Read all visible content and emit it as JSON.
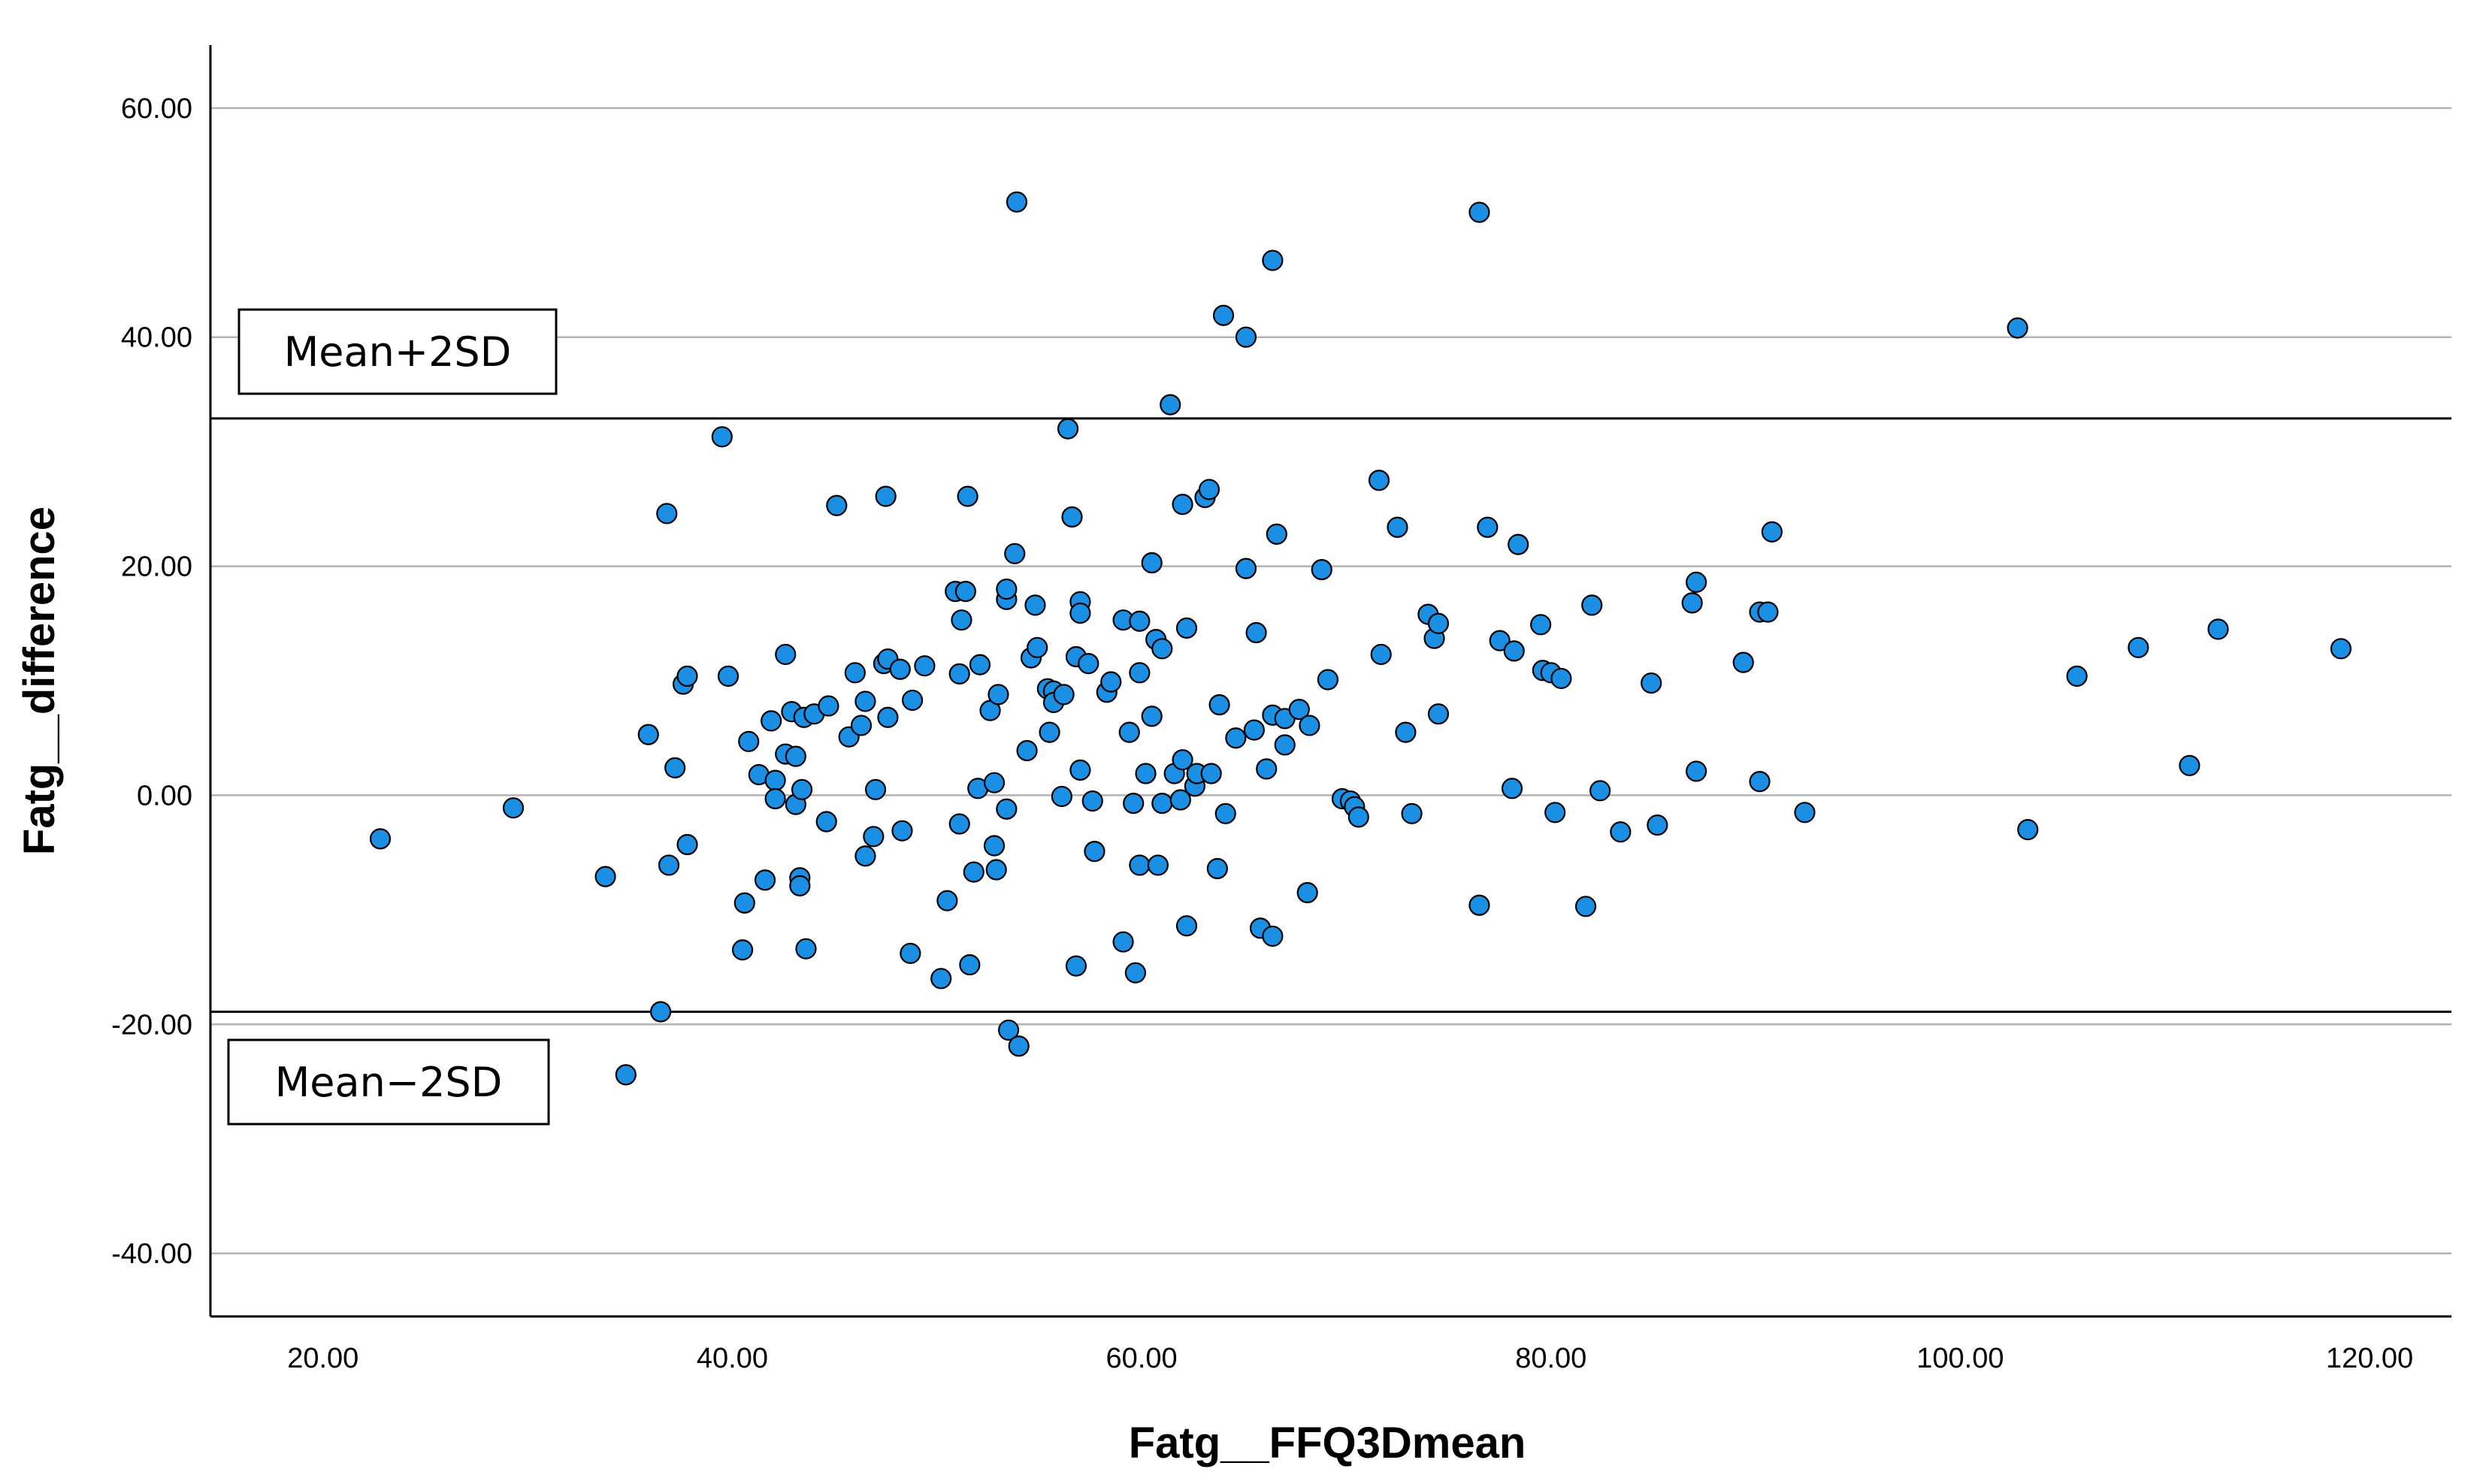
{
  "chart_data": {
    "type": "scatter",
    "xlabel": "Fatg__FFQ3Dmean",
    "ylabel": "Fatg__difference",
    "xlim": [
      14.5,
      124
    ],
    "ylim": [
      -45.5,
      65.5
    ],
    "x_ticks": [
      20,
      40,
      60,
      80,
      100,
      120
    ],
    "x_tick_labels": [
      "20.00",
      "40.00",
      "60.00",
      "80.00",
      "100.00",
      "120.00"
    ],
    "y_ticks": [
      -40,
      -20,
      0,
      20,
      40,
      60
    ],
    "y_tick_labels": [
      "-40.00",
      "-20.00",
      "0.00",
      "20.00",
      "40.00",
      "60.00"
    ],
    "grid": "horizontal",
    "point_color": "#1a8fe3",
    "reference_lines": [
      {
        "label": "Mean+2SD",
        "y": 32.9
      },
      {
        "label": "Mean−2SD",
        "y": -18.9
      }
    ],
    "points": [
      [
        22.8,
        -3.8
      ],
      [
        29.3,
        -1.1
      ],
      [
        33.8,
        -7.1
      ],
      [
        34.8,
        -24.4
      ],
      [
        35.9,
        5.3
      ],
      [
        36.5,
        -18.9
      ],
      [
        36.8,
        24.6
      ],
      [
        36.9,
        -6.1
      ],
      [
        37.2,
        2.4
      ],
      [
        37.6,
        9.7
      ],
      [
        37.8,
        10.4
      ],
      [
        37.8,
        -4.3
      ],
      [
        39.5,
        31.3
      ],
      [
        39.8,
        10.4
      ],
      [
        40.6,
        -9.4
      ],
      [
        40.5,
        -13.5
      ],
      [
        40.8,
        4.7
      ],
      [
        41.3,
        1.8
      ],
      [
        41.6,
        -7.4
      ],
      [
        41.9,
        6.5
      ],
      [
        42.1,
        1.3
      ],
      [
        42.1,
        -0.3
      ],
      [
        42.6,
        12.3
      ],
      [
        42.6,
        3.6
      ],
      [
        42.9,
        7.3
      ],
      [
        43.1,
        3.4
      ],
      [
        43.1,
        -0.8
      ],
      [
        43.3,
        -7.2
      ],
      [
        43.3,
        -7.9
      ],
      [
        43.4,
        0.5
      ],
      [
        43.5,
        6.8
      ],
      [
        43.6,
        -13.4
      ],
      [
        44,
        7.1
      ],
      [
        44.6,
        -2.3
      ],
      [
        44.7,
        7.8
      ],
      [
        45.1,
        25.3
      ],
      [
        45.7,
        5.1
      ],
      [
        46,
        10.7
      ],
      [
        46.3,
        6.1
      ],
      [
        46.5,
        -5.3
      ],
      [
        46.5,
        8.2
      ],
      [
        46.9,
        -3.6
      ],
      [
        47,
        0.5
      ],
      [
        47.4,
        11.5
      ],
      [
        47.5,
        26.1
      ],
      [
        47.6,
        6.8
      ],
      [
        47.6,
        11.9
      ],
      [
        48.2,
        11
      ],
      [
        48.3,
        -3.1
      ],
      [
        48.7,
        -13.8
      ],
      [
        48.8,
        8.3
      ],
      [
        49.4,
        11.3
      ],
      [
        50.2,
        -16
      ],
      [
        50.5,
        -9.2
      ],
      [
        50.9,
        17.8
      ],
      [
        51.1,
        10.6
      ],
      [
        51.1,
        -2.5
      ],
      [
        51.2,
        15.3
      ],
      [
        51.4,
        17.8
      ],
      [
        51.5,
        26.1
      ],
      [
        51.6,
        -14.8
      ],
      [
        51.8,
        -6.7
      ],
      [
        52,
        0.6
      ],
      [
        52.1,
        11.4
      ],
      [
        52.6,
        7.4
      ],
      [
        52.8,
        1.1
      ],
      [
        52.8,
        -4.4
      ],
      [
        52.9,
        -6.5
      ],
      [
        53,
        8.8
      ],
      [
        53.4,
        -1.2
      ],
      [
        53.4,
        17.1
      ],
      [
        53.4,
        18
      ],
      [
        53.5,
        -20.5
      ],
      [
        53.8,
        21.1
      ],
      [
        53.9,
        51.8
      ],
      [
        54,
        -21.9
      ],
      [
        54.4,
        3.9
      ],
      [
        54.6,
        12
      ],
      [
        54.8,
        16.6
      ],
      [
        54.9,
        12.9
      ],
      [
        55.4,
        9.3
      ],
      [
        55.5,
        5.5
      ],
      [
        55.7,
        9.1
      ],
      [
        55.7,
        8.1
      ],
      [
        56.1,
        -0.1
      ],
      [
        56.2,
        8.8
      ],
      [
        56.4,
        32
      ],
      [
        56.6,
        24.3
      ],
      [
        56.8,
        12.1
      ],
      [
        56.8,
        -14.9
      ],
      [
        57,
        16.9
      ],
      [
        57,
        15.9
      ],
      [
        57,
        2.2
      ],
      [
        57.4,
        11.5
      ],
      [
        57.6,
        -0.5
      ],
      [
        57.7,
        -4.9
      ],
      [
        58.3,
        9
      ],
      [
        58.5,
        9.9
      ],
      [
        59.1,
        15.3
      ],
      [
        59.1,
        -12.8
      ],
      [
        59.4,
        5.5
      ],
      [
        59.6,
        -0.7
      ],
      [
        59.7,
        -15.5
      ],
      [
        59.9,
        15.2
      ],
      [
        59.9,
        10.7
      ],
      [
        59.9,
        -6.1
      ],
      [
        60.2,
        1.9
      ],
      [
        60.5,
        6.9
      ],
      [
        60.5,
        20.3
      ],
      [
        60.7,
        13.6
      ],
      [
        60.8,
        -6.1
      ],
      [
        61,
        12.8
      ],
      [
        61,
        -0.7
      ],
      [
        61.4,
        34.1
      ],
      [
        61.6,
        1.9
      ],
      [
        61.9,
        -0.4
      ],
      [
        62,
        3.1
      ],
      [
        62,
        25.4
      ],
      [
        62.2,
        -11.4
      ],
      [
        62.2,
        14.6
      ],
      [
        62.6,
        0.8
      ],
      [
        62.7,
        1.9
      ],
      [
        63.1,
        26
      ],
      [
        63.3,
        26.7
      ],
      [
        63.4,
        1.9
      ],
      [
        63.7,
        -6.4
      ],
      [
        63.8,
        7.9
      ],
      [
        64,
        41.9
      ],
      [
        64.1,
        -1.6
      ],
      [
        64.6,
        5
      ],
      [
        65.1,
        40
      ],
      [
        65.1,
        19.8
      ],
      [
        65.5,
        5.7
      ],
      [
        65.6,
        14.2
      ],
      [
        65.8,
        -11.6
      ],
      [
        66.1,
        2.3
      ],
      [
        66.4,
        -12.3
      ],
      [
        66.4,
        46.7
      ],
      [
        66.4,
        7
      ],
      [
        66.6,
        22.8
      ],
      [
        67,
        4.4
      ],
      [
        67,
        6.7
      ],
      [
        67.7,
        7.5
      ],
      [
        68.1,
        -8.5
      ],
      [
        68.2,
        6.1
      ],
      [
        68.8,
        19.7
      ],
      [
        69.1,
        10.1
      ],
      [
        69.8,
        -0.3
      ],
      [
        70.2,
        -0.5
      ],
      [
        70.4,
        -1
      ],
      [
        70.6,
        -1.9
      ],
      [
        71.6,
        27.5
      ],
      [
        71.7,
        12.3
      ],
      [
        72.5,
        23.4
      ],
      [
        72.9,
        5.5
      ],
      [
        73.2,
        -1.6
      ],
      [
        74,
        15.8
      ],
      [
        74.3,
        13.7
      ],
      [
        74.5,
        15
      ],
      [
        74.5,
        7.1
      ],
      [
        76.5,
        -9.6
      ],
      [
        76.5,
        50.9
      ],
      [
        76.9,
        23.4
      ],
      [
        77.5,
        13.5
      ],
      [
        78.1,
        0.6
      ],
      [
        78.2,
        12.6
      ],
      [
        78.4,
        21.9
      ],
      [
        79.5,
        14.9
      ],
      [
        79.6,
        10.9
      ],
      [
        80,
        10.7
      ],
      [
        80.2,
        -1.5
      ],
      [
        80.5,
        10.2
      ],
      [
        81.7,
        -9.7
      ],
      [
        82,
        16.6
      ],
      [
        82.4,
        0.4
      ],
      [
        83.4,
        -3.2
      ],
      [
        84.9,
        9.8
      ],
      [
        85.2,
        -2.6
      ],
      [
        86.9,
        16.8
      ],
      [
        87.1,
        18.6
      ],
      [
        87.1,
        2.1
      ],
      [
        89.4,
        11.6
      ],
      [
        90.2,
        1.2
      ],
      [
        90.2,
        16
      ],
      [
        90.6,
        16
      ],
      [
        90.8,
        23
      ],
      [
        92.4,
        -1.5
      ],
      [
        102.8,
        40.8
      ],
      [
        103.3,
        -3
      ],
      [
        105.7,
        10.4
      ],
      [
        108.7,
        12.9
      ],
      [
        111.2,
        2.6
      ],
      [
        112.6,
        14.5
      ],
      [
        118.6,
        12.8
      ]
    ]
  }
}
